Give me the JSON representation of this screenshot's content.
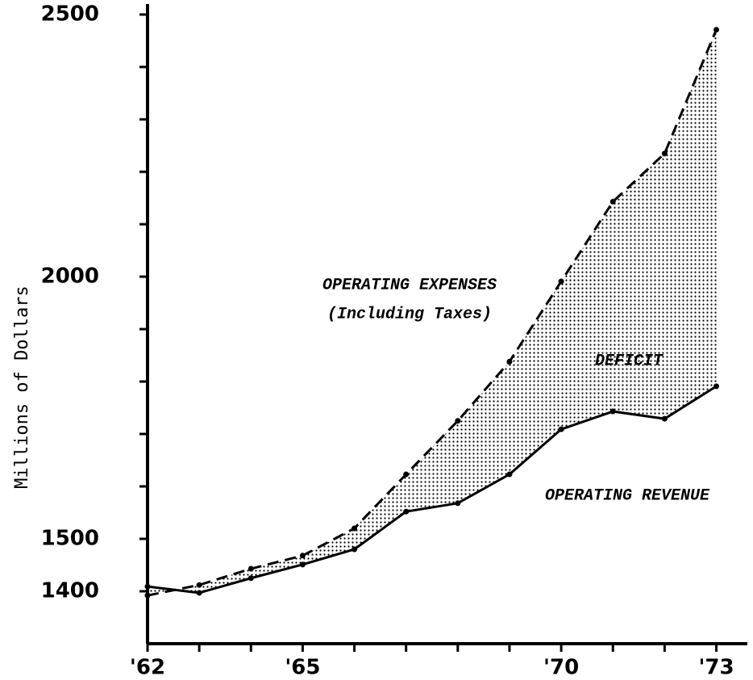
{
  "chart_data": {
    "type": "line",
    "y_label": "Millions of Dollars",
    "x": [
      1962,
      1963,
      1964,
      1965,
      1966,
      1967,
      1968,
      1969,
      1970,
      1971,
      1972,
      1973
    ],
    "series": [
      {
        "name": "OPERATING EXPENSES",
        "color": "#000000",
        "dash": true,
        "values": [
          1392,
          1412,
          1443,
          1468,
          1520,
          1623,
          1725,
          1838,
          1991,
          2143,
          2235,
          2471
        ]
      },
      {
        "name": "OPERATING REVENUE",
        "color": "#000000",
        "dash": false,
        "values": [
          1409,
          1397,
          1425,
          1451,
          1480,
          1552,
          1568,
          1623,
          1709,
          1743,
          1729,
          1791
        ]
      }
    ],
    "annotations": [
      "(Including Taxes)",
      "DEFICIT"
    ],
    "xlim": [
      1962,
      1973.6
    ],
    "ylim": [
      1300,
      2520
    ],
    "xticks": [
      {
        "value": 1962,
        "label": "'62"
      },
      {
        "value": 1965,
        "label": "'65"
      },
      {
        "value": 1970,
        "label": "'70"
      },
      {
        "value": 1973,
        "label": "'73"
      }
    ],
    "xminorticks": [
      1963,
      1964,
      1966,
      1967,
      1968,
      1969,
      1971,
      1972
    ],
    "yticks": [
      1400,
      1500,
      2000,
      2500
    ],
    "yminorticks": [
      1600,
      1700,
      1800,
      1900,
      2100,
      2200,
      2300,
      2400
    ]
  }
}
